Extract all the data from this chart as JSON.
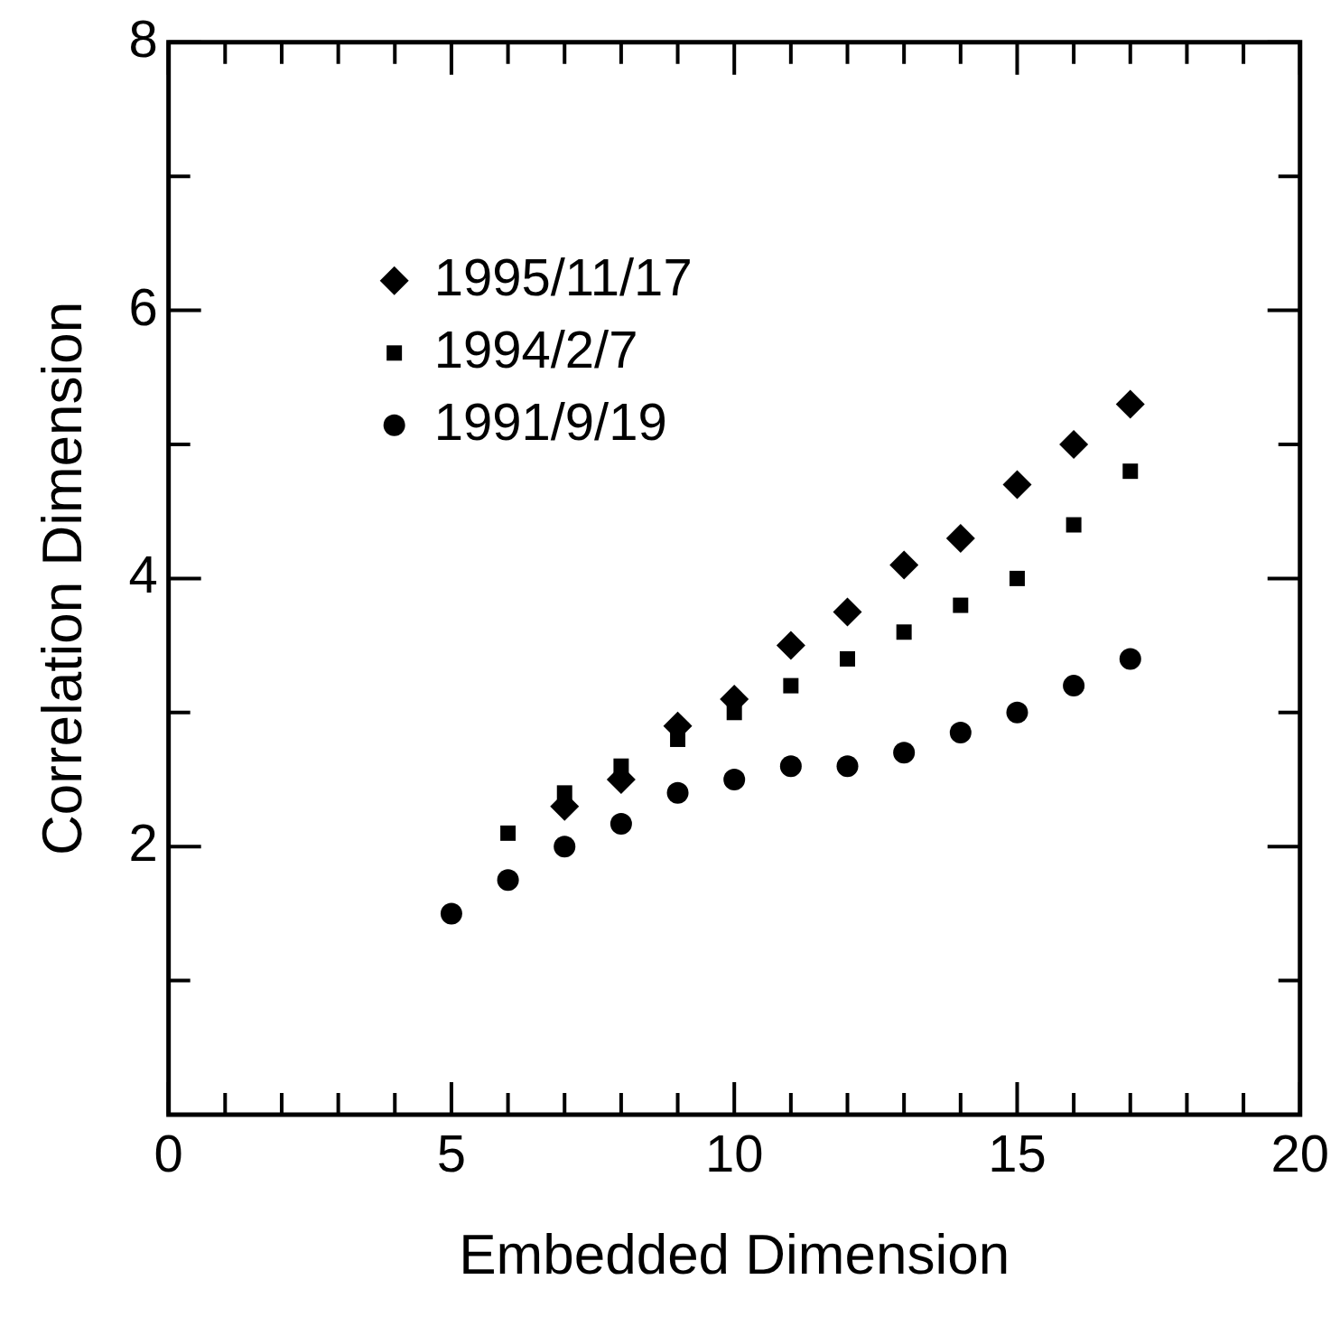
{
  "chart_data": {
    "type": "scatter",
    "xlabel": "Embedded Dimension",
    "ylabel": "Correlation Dimension",
    "xlim": [
      0,
      20
    ],
    "ylim": [
      0,
      8
    ],
    "xticks": [
      0,
      {
        "value": 1,
        "label": null
      },
      {
        "value": 2,
        "label": null
      },
      {
        "value": 3,
        "label": null
      },
      {
        "value": 4,
        "label": null
      },
      5,
      {
        "value": 6,
        "label": null
      },
      {
        "value": 7,
        "label": null
      },
      {
        "value": 8,
        "label": null
      },
      {
        "value": 9,
        "label": null
      },
      10,
      {
        "value": 11,
        "label": null
      },
      {
        "value": 12,
        "label": null
      },
      {
        "value": 13,
        "label": null
      },
      {
        "value": 14,
        "label": null
      },
      15,
      {
        "value": 16,
        "label": null
      },
      {
        "value": 17,
        "label": null
      },
      {
        "value": 18,
        "label": null
      },
      {
        "value": 19,
        "label": null
      },
      20
    ],
    "yticks": [
      {
        "value": 0,
        "label": null
      },
      {
        "value": 1,
        "label": null
      },
      2,
      {
        "value": 3,
        "label": null
      },
      4,
      {
        "value": 5,
        "label": null
      },
      6,
      {
        "value": 7,
        "label": null
      },
      8
    ],
    "legend": "top left",
    "grid": false,
    "series": [
      {
        "name": "1995/11/17",
        "color": "#000000",
        "marker": "diamond",
        "x": [
          7,
          8,
          9,
          10,
          11,
          12,
          13,
          14,
          15,
          16,
          17
        ],
        "values": [
          2.3,
          2.5,
          2.9,
          3.1,
          3.5,
          3.75,
          4.1,
          4.3,
          4.7,
          5.0,
          5.3
        ]
      },
      {
        "name": "1994/2/7",
        "color": "#000000",
        "marker": "square",
        "x": [
          6,
          7,
          8,
          9,
          10,
          11,
          12,
          13,
          14,
          15,
          16,
          17
        ],
        "values": [
          2.1,
          2.4,
          2.6,
          2.8,
          3.0,
          3.2,
          3.4,
          3.6,
          3.8,
          4.0,
          4.4,
          4.8
        ]
      },
      {
        "name": "1991/9/19",
        "color": "#000000",
        "marker": "circle",
        "x": [
          5,
          6,
          7,
          8,
          9,
          10,
          11,
          12,
          13,
          14,
          15,
          16,
          17
        ],
        "values": [
          1.5,
          1.75,
          2.0,
          2.17,
          2.4,
          2.5,
          2.6,
          2.6,
          2.7,
          2.85,
          3.0,
          3.2,
          3.4
        ]
      }
    ]
  }
}
